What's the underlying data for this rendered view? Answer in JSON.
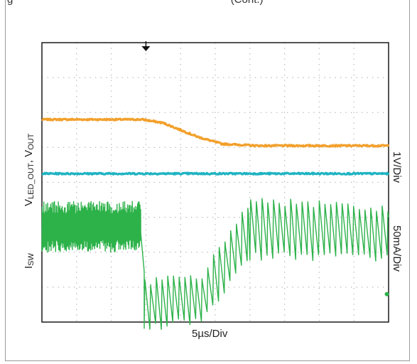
{
  "caption": "g",
  "caption_tail": "(Cont.)",
  "colors": {
    "vled_out": "#f2a02c",
    "vout": "#1fb3c2",
    "isw": "#2db24a",
    "grid": "#b5b5b5",
    "frame": "#1a1a1a"
  },
  "labels": {
    "x_scale": "5µs/Div",
    "y_voltage_main": "V",
    "y_voltage_sub1": "LED_OUT",
    "y_voltage_sep": ", V",
    "y_voltage_sub2": "OUT",
    "y_current_main": "I",
    "y_current_sub": "SW",
    "right_voltage_scale": "1V/Div",
    "right_current_scale": "50mA/Div"
  },
  "chart_data": {
    "type": "line",
    "grid": true,
    "x_divisions": 10,
    "y_divisions": 8,
    "trigger_marker_x_div": 3,
    "series": [
      {
        "key": "vled_out",
        "points_div": [
          [
            0,
            5.8
          ],
          [
            2.9,
            5.8
          ],
          [
            3.5,
            5.7
          ],
          [
            4.5,
            5.3
          ],
          [
            5.2,
            5.1
          ],
          [
            6.2,
            5.05
          ],
          [
            10,
            5.05
          ]
        ]
      },
      {
        "key": "vout",
        "points_div": [
          [
            0,
            4.25
          ],
          [
            10,
            4.25
          ]
        ]
      },
      {
        "key": "isw",
        "segments": [
          {
            "x0": 0.0,
            "x1": 2.85,
            "mode": "burst",
            "top": 3.45,
            "bottom": 2.0
          },
          {
            "x0": 2.85,
            "x1": 2.95,
            "mode": "drop",
            "top": 2.55,
            "bottom": 1.45
          },
          {
            "x0": 2.95,
            "x1": 4.6,
            "mode": "saw",
            "period": 0.165,
            "top": [
              1.15,
              1.3
            ],
            "bottom": [
              -0.15,
              0.05
            ]
          },
          {
            "x0": 4.6,
            "x1": 6.0,
            "mode": "saw",
            "period": 0.165,
            "top": [
              1.3,
              3.5
            ],
            "bottom": [
              0.05,
              1.9
            ]
          },
          {
            "x0": 6.0,
            "x1": 10.0,
            "mode": "saw",
            "period": 0.165,
            "top": [
              3.5,
              3.2
            ],
            "bottom": [
              1.9,
              1.85
            ]
          }
        ],
        "end_marker_div": [
          9.95,
          0.8
        ]
      }
    ]
  }
}
